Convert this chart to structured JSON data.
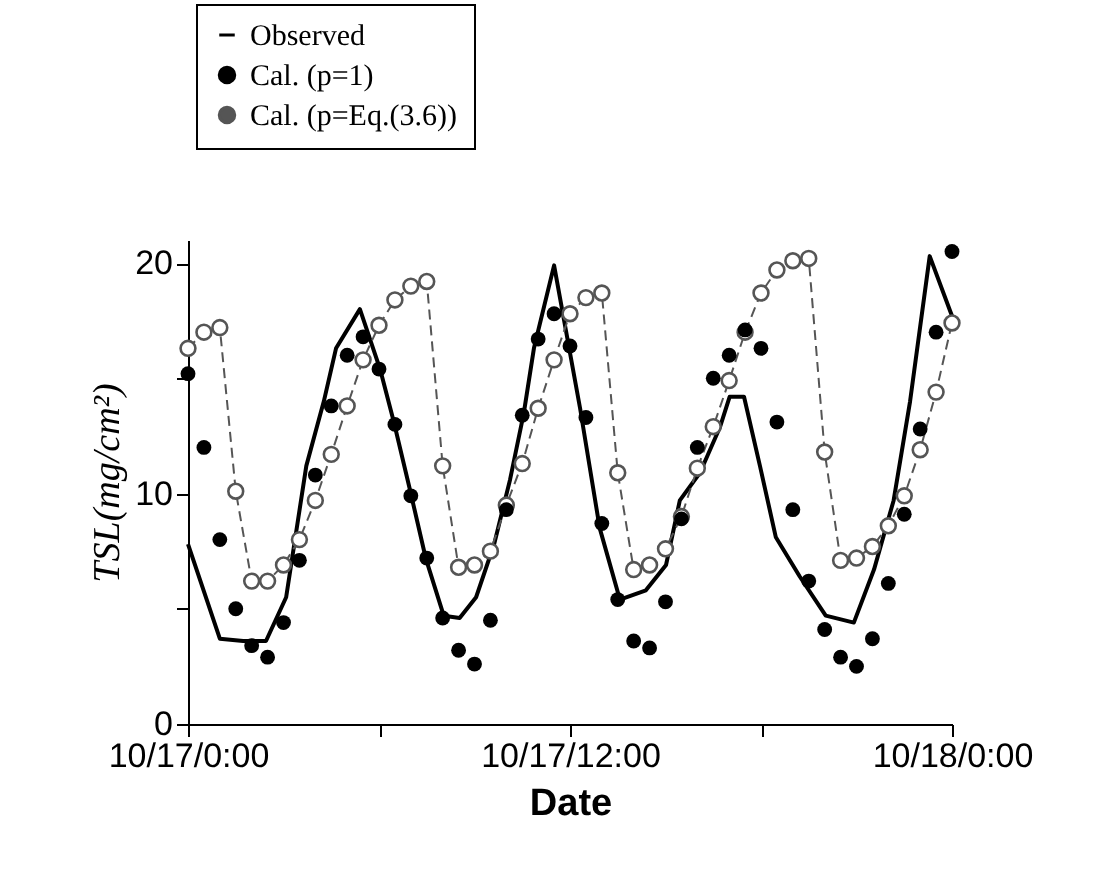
{
  "chart_data": {
    "type": "line",
    "xlabel": "Date",
    "ylabel": "TSL(mg/cm²)",
    "legend": "top",
    "xlim": [
      "--10-17T00:00",
      "--10-18T00:00"
    ],
    "ylim": [
      0,
      21
    ],
    "xticks": [
      {
        "value": "--10-17T00:00",
        "label": "10/17/0:00"
      },
      {
        "value": "--10-17T06:00",
        "label": null
      },
      {
        "value": "--10-17T12:00",
        "label": "10/17/12:00"
      },
      {
        "value": "--10-17T18:00",
        "label": null
      },
      {
        "value": "--10-18T00:00",
        "label": "10/18/0:00"
      }
    ],
    "yticks": [
      0,
      {
        "value": 5,
        "label": null
      },
      10,
      {
        "value": 15,
        "label": null
      },
      20
    ],
    "x": [
      "--10-17T00:00",
      "--10-17T00:30",
      "--10-17T01:00",
      "--10-17T01:30",
      "--10-17T02:00",
      "--10-17T02:30",
      "--10-17T03:00",
      "--10-17T03:30",
      "--10-17T04:00",
      "--10-17T04:30",
      "--10-17T05:00",
      "--10-17T05:30",
      "--10-17T06:00",
      "--10-17T06:30",
      "--10-17T07:00",
      "--10-17T07:30",
      "--10-17T08:00",
      "--10-17T08:30",
      "--10-17T09:00",
      "--10-17T09:30",
      "--10-17T10:00",
      "--10-17T10:30",
      "--10-17T11:00",
      "--10-17T11:30",
      "--10-17T12:00",
      "--10-17T12:30",
      "--10-17T13:00",
      "--10-17T13:30",
      "--10-17T14:00",
      "--10-17T14:30",
      "--10-17T15:00",
      "--10-17T15:30",
      "--10-17T16:00",
      "--10-17T16:30",
      "--10-17T17:00",
      "--10-17T17:30",
      "--10-17T18:00",
      "--10-17T18:30",
      "--10-17T19:00",
      "--10-17T19:30",
      "--10-17T20:00",
      "--10-17T20:30",
      "--10-17T21:00",
      "--10-17T21:30",
      "--10-17T22:00",
      "--10-17T22:30",
      "--10-17T23:00",
      "--10-17T23:30",
      "--10-18T00:00"
    ],
    "series": [
      {
        "name": "Observed",
        "color": "#000000",
        "line_style": "solid",
        "marker": "none",
        "x": [
          "--10-17T00:00",
          "--10-17T01:00",
          "--10-17T01:44",
          "--10-17T02:27",
          "--10-17T03:05",
          "--10-17T03:43",
          "--10-17T04:16",
          "--10-17T04:39",
          "--10-17T05:24",
          "--10-17T06:02",
          "--10-17T06:28",
          "--10-17T06:58",
          "--10-17T07:28",
          "--10-17T08:02",
          "--10-17T08:32",
          "--10-17T09:03",
          "--10-17T09:37",
          "--10-17T10:07",
          "--10-17T10:33",
          "--10-17T10:52",
          "--10-17T11:30",
          "--10-17T12:19",
          "--10-17T12:56",
          "--10-17T13:34",
          "--10-17T14:23",
          "--10-17T15:01",
          "--10-17T15:27",
          "--10-17T16:05",
          "--10-17T16:43",
          "--10-17T17:01",
          "--10-17T17:28",
          "--10-17T17:58",
          "--10-17T18:28",
          "--10-17T19:13",
          "--10-17T20:02",
          "--10-17T20:55",
          "--10-17T21:33",
          "--10-17T22:10",
          "--10-17T22:41",
          "--10-17T23:18",
          "--10-18T00:00"
        ],
        "values": [
          7.8,
          3.7,
          3.6,
          3.6,
          5.5,
          11.2,
          14.0,
          16.3,
          18.0,
          15.4,
          13.1,
          10.2,
          7.2,
          4.7,
          4.6,
          5.5,
          7.8,
          10.6,
          13.5,
          16.3,
          19.9,
          13.7,
          8.5,
          5.4,
          5.8,
          6.9,
          9.7,
          10.9,
          12.9,
          14.2,
          14.2,
          11.2,
          8.1,
          6.4,
          4.7,
          4.4,
          6.7,
          9.7,
          14.0,
          20.3,
          17.7
        ]
      },
      {
        "name": "Cal. (p=1)",
        "type": "scatter",
        "color": "#000000",
        "marker": "circle",
        "values": [
          15.2,
          12.0,
          8.0,
          5.0,
          3.4,
          2.9,
          4.4,
          7.1,
          10.8,
          13.8,
          16.0,
          16.8,
          15.4,
          13.0,
          9.9,
          7.2,
          4.6,
          3.2,
          2.6,
          4.5,
          9.3,
          13.4,
          16.7,
          17.8,
          16.4,
          13.3,
          8.7,
          5.4,
          3.6,
          3.3,
          5.3,
          8.9,
          12.0,
          15.0,
          16.0,
          17.1,
          16.3,
          13.1,
          9.3,
          6.2,
          4.1,
          2.9,
          2.5,
          3.7,
          6.1,
          9.1,
          12.8,
          17.0,
          20.5
        ]
      },
      {
        "name": "Cal. (p=Eq.(3.6))",
        "color": "#555555",
        "line_style": "dashed",
        "marker": "circle",
        "values": [
          16.3,
          17.0,
          17.2,
          10.1,
          6.2,
          6.2,
          6.9,
          8.0,
          9.7,
          11.7,
          13.8,
          15.8,
          17.3,
          18.4,
          19.0,
          19.2,
          11.2,
          6.8,
          6.9,
          7.5,
          9.5,
          11.3,
          13.7,
          15.8,
          17.8,
          18.5,
          18.7,
          10.9,
          6.7,
          6.9,
          7.6,
          9.0,
          11.1,
          12.9,
          14.9,
          17.0,
          18.7,
          19.7,
          20.1,
          20.2,
          11.8,
          7.1,
          7.2,
          7.7,
          8.6,
          9.9,
          11.9,
          14.4,
          17.4
        ]
      }
    ]
  }
}
